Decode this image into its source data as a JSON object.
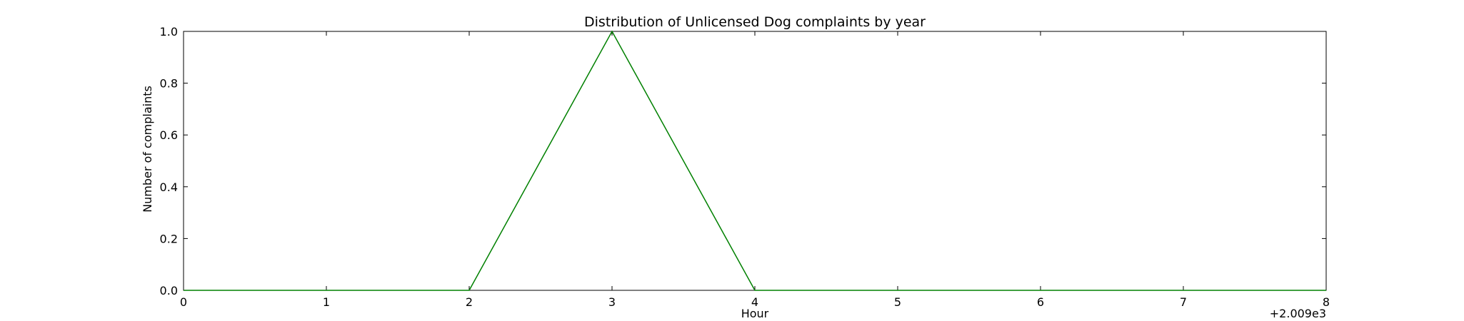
{
  "chart_data": {
    "type": "line",
    "title": "Distribution of  Unlicensed Dog complaints by year",
    "xlabel": "Hour",
    "ylabel": "Number of complaints",
    "x_offset_label": "+2.009e3",
    "x": [
      0,
      1,
      2,
      3,
      4,
      5,
      6,
      7,
      8
    ],
    "series": [
      {
        "values": [
          0,
          0,
          0,
          1,
          0,
          0,
          0,
          0,
          0
        ],
        "color": "#008000"
      }
    ],
    "xlim": [
      0,
      8
    ],
    "ylim": [
      0,
      1
    ],
    "xticks": [
      "0",
      "1",
      "2",
      "3",
      "4",
      "5",
      "6",
      "7",
      "8"
    ],
    "yticks": [
      "0.0",
      "0.2",
      "0.4",
      "0.6",
      "0.8",
      "1.0"
    ],
    "grid": false,
    "legend": "none"
  }
}
